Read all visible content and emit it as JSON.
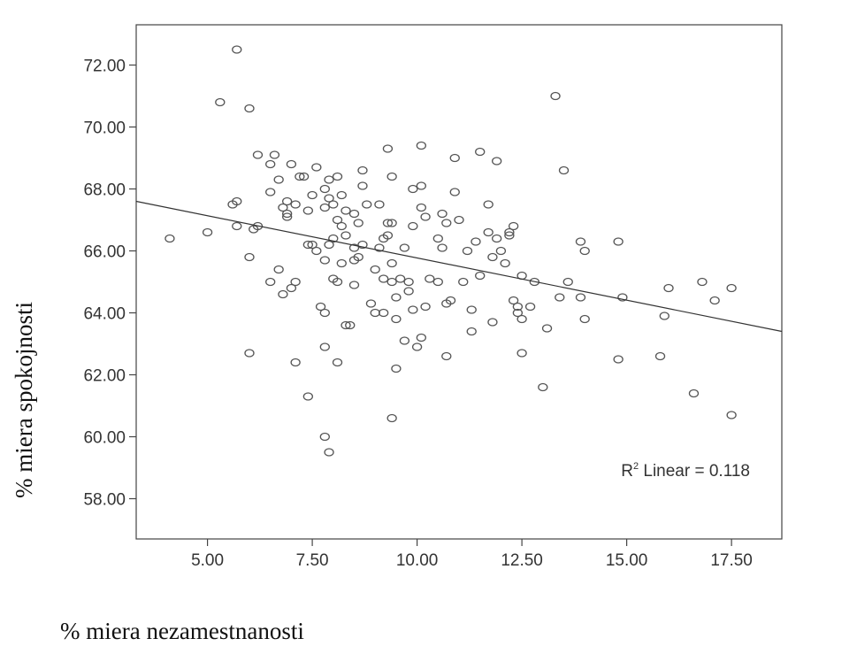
{
  "chart_data": {
    "type": "scatter",
    "title": "",
    "xlabel": "% miera nezamestnanosti",
    "ylabel": "% miera spokojnosti",
    "xlim": [
      3.3,
      18.7
    ],
    "ylim": [
      56.7,
      73.3
    ],
    "x_ticks": [
      5,
      7.5,
      10,
      12.5,
      15,
      17.5
    ],
    "x_tick_labels": [
      "5.00",
      "7.50",
      "10.00",
      "12.50",
      "15.00",
      "17.50"
    ],
    "y_ticks": [
      58,
      60,
      62,
      64,
      66,
      68,
      70,
      72
    ],
    "y_tick_labels": [
      "58.00",
      "60.00",
      "62.00",
      "64.00",
      "66.00",
      "68.00",
      "70.00",
      "72.00"
    ],
    "grid": false,
    "fit_line": {
      "kind": "linear",
      "x0": 3.3,
      "y0": 67.6,
      "x1": 18.7,
      "y1": 63.4
    },
    "r2_label": {
      "prefix": "R",
      "superscript": "2",
      "text": " Linear = 0.118"
    },
    "series": [
      {
        "points": [
          [
            4.1,
            66.4
          ],
          [
            5.0,
            66.6
          ],
          [
            5.3,
            70.8
          ],
          [
            5.7,
            72.5
          ],
          [
            6.0,
            70.6
          ],
          [
            5.6,
            67.5
          ],
          [
            5.7,
            67.6
          ],
          [
            5.7,
            66.8
          ],
          [
            6.0,
            65.8
          ],
          [
            6.0,
            62.7
          ],
          [
            6.1,
            66.7
          ],
          [
            6.2,
            66.8
          ],
          [
            6.2,
            69.1
          ],
          [
            6.5,
            68.8
          ],
          [
            6.6,
            69.1
          ],
          [
            6.5,
            67.9
          ],
          [
            6.7,
            68.3
          ],
          [
            6.5,
            65.0
          ],
          [
            6.7,
            65.4
          ],
          [
            6.8,
            64.6
          ],
          [
            6.8,
            67.4
          ],
          [
            6.9,
            67.2
          ],
          [
            6.9,
            67.1
          ],
          [
            6.9,
            67.6
          ],
          [
            7.0,
            68.8
          ],
          [
            7.2,
            68.4
          ],
          [
            7.1,
            67.5
          ],
          [
            7.1,
            65.0
          ],
          [
            7.0,
            64.8
          ],
          [
            7.1,
            62.4
          ],
          [
            7.3,
            68.4
          ],
          [
            7.4,
            67.3
          ],
          [
            7.4,
            66.2
          ],
          [
            7.5,
            67.8
          ],
          [
            7.5,
            66.2
          ],
          [
            7.6,
            68.7
          ],
          [
            7.6,
            66.0
          ],
          [
            7.4,
            61.3
          ],
          [
            7.7,
            64.2
          ],
          [
            7.8,
            64.0
          ],
          [
            7.8,
            65.7
          ],
          [
            7.8,
            67.4
          ],
          [
            7.8,
            68.0
          ],
          [
            7.8,
            62.9
          ],
          [
            7.8,
            60.0
          ],
          [
            7.9,
            59.5
          ],
          [
            7.9,
            67.7
          ],
          [
            7.9,
            68.3
          ],
          [
            7.9,
            66.2
          ],
          [
            8.0,
            67.5
          ],
          [
            8.0,
            66.4
          ],
          [
            8.0,
            65.1
          ],
          [
            8.1,
            68.4
          ],
          [
            8.1,
            67.0
          ],
          [
            8.1,
            65.0
          ],
          [
            8.1,
            62.4
          ],
          [
            8.2,
            67.8
          ],
          [
            8.2,
            66.8
          ],
          [
            8.2,
            65.6
          ],
          [
            8.3,
            67.3
          ],
          [
            8.3,
            66.5
          ],
          [
            8.3,
            63.6
          ],
          [
            8.4,
            63.6
          ],
          [
            8.5,
            67.2
          ],
          [
            8.5,
            66.1
          ],
          [
            8.5,
            65.7
          ],
          [
            8.5,
            64.9
          ],
          [
            8.6,
            65.8
          ],
          [
            8.6,
            66.9
          ],
          [
            8.7,
            68.6
          ],
          [
            8.7,
            68.1
          ],
          [
            8.7,
            66.2
          ],
          [
            8.8,
            67.5
          ],
          [
            8.9,
            64.3
          ],
          [
            9.0,
            65.4
          ],
          [
            9.0,
            64.0
          ],
          [
            9.1,
            66.1
          ],
          [
            9.1,
            67.5
          ],
          [
            9.2,
            65.1
          ],
          [
            9.2,
            64.0
          ],
          [
            9.2,
            66.4
          ],
          [
            9.3,
            69.3
          ],
          [
            9.3,
            66.9
          ],
          [
            9.3,
            66.5
          ],
          [
            9.4,
            68.4
          ],
          [
            9.4,
            66.9
          ],
          [
            9.4,
            65.6
          ],
          [
            9.4,
            65.0
          ],
          [
            9.4,
            60.6
          ],
          [
            9.5,
            64.5
          ],
          [
            9.5,
            63.8
          ],
          [
            9.5,
            62.2
          ],
          [
            9.6,
            65.1
          ],
          [
            9.7,
            66.1
          ],
          [
            9.7,
            63.1
          ],
          [
            9.8,
            64.7
          ],
          [
            9.8,
            65.0
          ],
          [
            9.9,
            68.0
          ],
          [
            9.9,
            66.8
          ],
          [
            9.9,
            64.1
          ],
          [
            10.0,
            62.9
          ],
          [
            10.1,
            69.4
          ],
          [
            10.1,
            68.1
          ],
          [
            10.1,
            67.4
          ],
          [
            10.1,
            63.2
          ],
          [
            10.2,
            67.1
          ],
          [
            10.2,
            64.2
          ],
          [
            10.3,
            65.1
          ],
          [
            10.5,
            66.4
          ],
          [
            10.5,
            65.0
          ],
          [
            10.6,
            66.1
          ],
          [
            10.6,
            67.2
          ],
          [
            10.7,
            66.9
          ],
          [
            10.7,
            64.3
          ],
          [
            10.7,
            62.6
          ],
          [
            10.8,
            64.4
          ],
          [
            10.9,
            69.0
          ],
          [
            10.9,
            67.9
          ],
          [
            11.0,
            67.0
          ],
          [
            11.1,
            65.0
          ],
          [
            11.2,
            66.0
          ],
          [
            11.3,
            64.1
          ],
          [
            11.3,
            63.4
          ],
          [
            11.4,
            66.3
          ],
          [
            11.5,
            69.2
          ],
          [
            11.5,
            65.2
          ],
          [
            11.7,
            67.5
          ],
          [
            11.7,
            66.6
          ],
          [
            11.8,
            65.8
          ],
          [
            11.8,
            63.7
          ],
          [
            11.9,
            68.9
          ],
          [
            11.9,
            66.4
          ],
          [
            12.0,
            66.0
          ],
          [
            12.1,
            65.6
          ],
          [
            12.2,
            66.5
          ],
          [
            12.2,
            66.6
          ],
          [
            12.3,
            66.8
          ],
          [
            12.3,
            64.4
          ],
          [
            12.4,
            64.0
          ],
          [
            12.4,
            64.2
          ],
          [
            12.5,
            63.8
          ],
          [
            12.5,
            62.7
          ],
          [
            12.7,
            64.2
          ],
          [
            12.8,
            65.0
          ],
          [
            12.5,
            65.2
          ],
          [
            13.0,
            61.6
          ],
          [
            13.1,
            63.5
          ],
          [
            13.3,
            71.0
          ],
          [
            13.4,
            64.5
          ],
          [
            13.5,
            68.6
          ],
          [
            13.6,
            65.0
          ],
          [
            13.9,
            64.5
          ],
          [
            13.9,
            66.3
          ],
          [
            14.0,
            66.0
          ],
          [
            14.0,
            63.8
          ],
          [
            14.8,
            66.3
          ],
          [
            14.8,
            62.5
          ],
          [
            14.9,
            64.5
          ],
          [
            15.8,
            62.6
          ],
          [
            15.9,
            63.9
          ],
          [
            16.0,
            64.8
          ],
          [
            16.6,
            61.4
          ],
          [
            16.8,
            65.0
          ],
          [
            17.1,
            64.4
          ],
          [
            17.5,
            64.8
          ],
          [
            17.5,
            60.7
          ]
        ]
      }
    ]
  }
}
